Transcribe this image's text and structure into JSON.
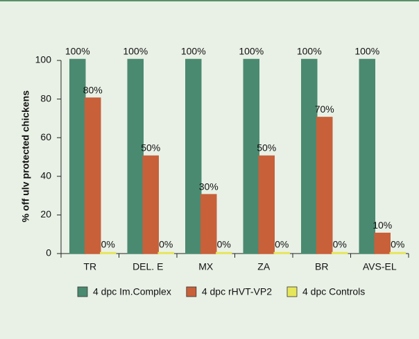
{
  "chart_data": {
    "type": "bar",
    "y_label": "% off ulv protected chickens",
    "categories": [
      "TR",
      "DEL. E",
      "MX",
      "ZA",
      "BR",
      "AVS-EL"
    ],
    "series": [
      {
        "name": "4 dpc Im.Complex",
        "color": "#4a8a70",
        "values": [
          100,
          100,
          100,
          100,
          100,
          100
        ],
        "value_labels": [
          "100%",
          "100%",
          "100%",
          "100%",
          "100%",
          "100%"
        ]
      },
      {
        "name": "4 dpc rHVT-VP2",
        "color": "#c8603a",
        "values": [
          80,
          50,
          30,
          50,
          70,
          10
        ],
        "value_labels": [
          "80%",
          "50%",
          "30%",
          "50%",
          "70%",
          "10%"
        ]
      },
      {
        "name": "4 dpc Controls",
        "color": "#e6e65a",
        "values": [
          0,
          0,
          0,
          0,
          0,
          0
        ],
        "value_labels": [
          "0%",
          "0%",
          "0%",
          "0%",
          "0%",
          "0%"
        ]
      }
    ],
    "ylim": [
      0,
      100
    ],
    "yticks": [
      0,
      20,
      40,
      60,
      80,
      100
    ],
    "legend": "bottom"
  }
}
